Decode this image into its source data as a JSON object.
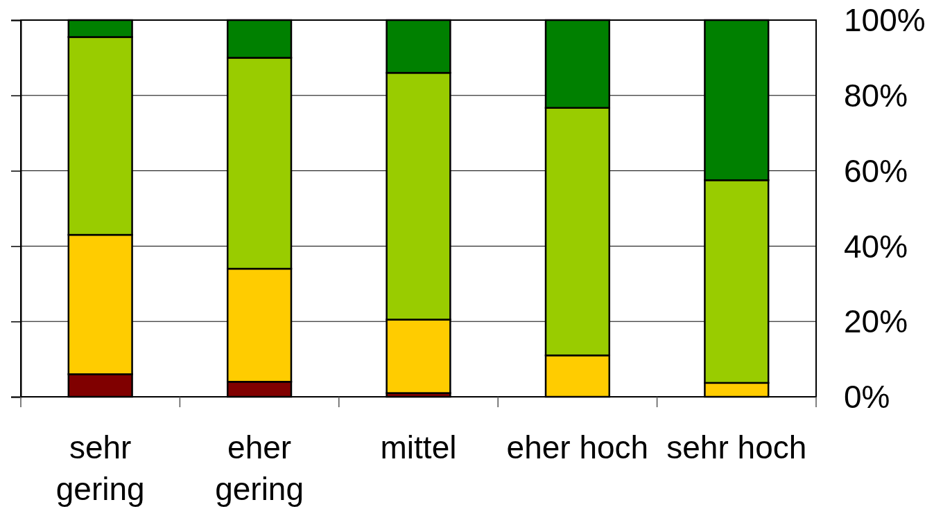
{
  "chart_data": {
    "type": "bar",
    "stacked": true,
    "categories": [
      "sehr gering",
      "eher gering",
      "mittel",
      "eher hoch",
      "sehr hoch"
    ],
    "series": [
      {
        "color": "#800000",
        "values": [
          6,
          4,
          1,
          null,
          0
        ]
      },
      {
        "color": "#ffcc00",
        "values": [
          37,
          30,
          19.5,
          11,
          3.7
        ]
      },
      {
        "color": "#99cc00",
        "values": [
          52.5,
          56,
          65.5,
          65.7,
          53.8
        ]
      },
      {
        "color": "#008000",
        "values": [
          4.5,
          10,
          14,
          23.3,
          42.5
        ]
      }
    ],
    "ylim": [
      0,
      100
    ],
    "yticks": [
      {
        "value": 0,
        "label": "0%"
      },
      {
        "value": 20,
        "label": "20%"
      },
      {
        "value": 40,
        "label": "40%"
      },
      {
        "value": 60,
        "label": "60%"
      },
      {
        "value": 80,
        "label": "80%"
      },
      {
        "value": 100,
        "label": "100%"
      }
    ],
    "grid": "y"
  }
}
